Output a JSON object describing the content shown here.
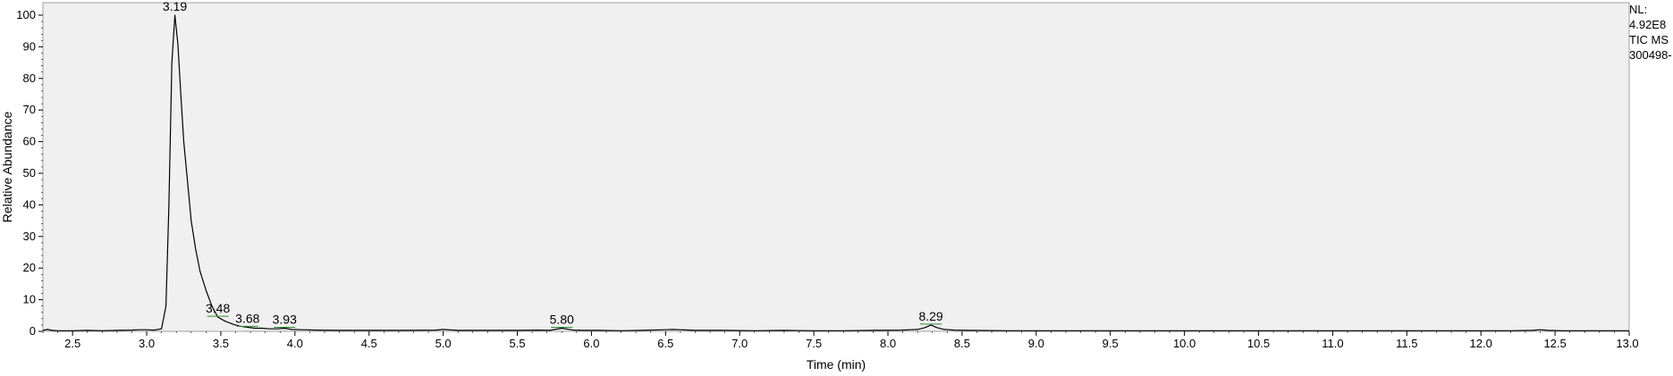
{
  "side_info": {
    "nl_label": "NL:",
    "nl_value": "4.92E8",
    "scan_filter": "TIC  MS",
    "file_name": "300498-"
  },
  "colors": {
    "plot_background": "#f0f0f0",
    "trace": "#000000",
    "annotation_marker": "#2e8b2e"
  },
  "chart_data": {
    "type": "line",
    "title": "",
    "xlabel": "Time (min)",
    "ylabel": "Relative Abundance",
    "xlim": [
      2.3,
      13.0
    ],
    "ylim": [
      0,
      100
    ],
    "x_ticks": [
      2.5,
      3.0,
      3.5,
      4.0,
      4.5,
      5.0,
      5.5,
      6.0,
      6.5,
      7.0,
      7.5,
      8.0,
      8.5,
      9.0,
      9.5,
      10.0,
      10.5,
      11.0,
      11.5,
      12.0,
      12.5,
      13.0
    ],
    "x_tick_labels": [
      "2.5",
      "3.0",
      "3.5",
      "4.0",
      "4.5",
      "5.0",
      "5.5",
      "6.0",
      "6.5",
      "7.0",
      "7.5",
      "8.0",
      "8.5",
      "9.0",
      "9.5",
      "10.0",
      "10.5",
      "11.0",
      "11.5",
      "12.0",
      "12.5",
      "13.0"
    ],
    "y_ticks": [
      0,
      10,
      20,
      30,
      40,
      50,
      60,
      70,
      80,
      90,
      100
    ],
    "y_tick_labels": [
      "0",
      "10",
      "20",
      "30",
      "40",
      "50",
      "60",
      "70",
      "80",
      "90",
      "100"
    ],
    "grid": false,
    "legend": "none",
    "series": [
      {
        "x": [
          2.3,
          2.33,
          2.36,
          2.4,
          2.5,
          2.6,
          2.7,
          2.8,
          2.9,
          2.95,
          3.0,
          3.05,
          3.1,
          3.13,
          3.15,
          3.17,
          3.19,
          3.21,
          3.23,
          3.25,
          3.28,
          3.3,
          3.33,
          3.36,
          3.4,
          3.44,
          3.48,
          3.53,
          3.58,
          3.63,
          3.68,
          3.73,
          3.78,
          3.83,
          3.88,
          3.93,
          3.98,
          4.05,
          4.15,
          4.3,
          4.5,
          4.75,
          4.95,
          5.0,
          5.1,
          5.3,
          5.5,
          5.65,
          5.72,
          5.8,
          5.88,
          5.95,
          6.05,
          6.2,
          6.4,
          6.5,
          6.55,
          6.7,
          6.9,
          7.1,
          7.3,
          7.5,
          7.7,
          7.9,
          8.1,
          8.2,
          8.25,
          8.29,
          8.33,
          8.38,
          8.45,
          8.55,
          8.8,
          9.2,
          9.7,
          10.2,
          10.7,
          11.2,
          11.7,
          12.2,
          12.35,
          12.4,
          12.45,
          12.55,
          12.7,
          12.85,
          13.0
        ],
        "y": [
          0.3,
          0.6,
          0.3,
          0.2,
          0.2,
          0.3,
          0.2,
          0.3,
          0.4,
          0.5,
          0.5,
          0.4,
          0.8,
          8,
          40,
          85,
          100,
          91,
          75,
          60,
          45,
          35,
          26,
          19,
          13,
          8,
          4.5,
          3.2,
          2.3,
          1.6,
          1.3,
          1.0,
          1.0,
          0.8,
          0.8,
          1.0,
          0.6,
          0.5,
          0.4,
          0.3,
          0.3,
          0.3,
          0.4,
          0.6,
          0.3,
          0.3,
          0.3,
          0.4,
          0.3,
          1.0,
          0.4,
          0.3,
          0.3,
          0.2,
          0.4,
          0.5,
          0.6,
          0.3,
          0.3,
          0.2,
          0.3,
          0.2,
          0.2,
          0.3,
          0.4,
          0.6,
          1.2,
          2.0,
          1.2,
          0.6,
          0.4,
          0.3,
          0.2,
          0.2,
          0.2,
          0.2,
          0.2,
          0.2,
          0.2,
          0.2,
          0.3,
          0.5,
          0.3,
          0.2,
          0.2,
          0.2,
          0.2
        ]
      }
    ],
    "annotations": [
      {
        "x": 3.19,
        "y": 100,
        "label": "3.19"
      },
      {
        "x": 3.48,
        "y": 4.5,
        "label": "3.48"
      },
      {
        "x": 3.68,
        "y": 1.3,
        "label": "3.68"
      },
      {
        "x": 3.93,
        "y": 1.0,
        "label": "3.93"
      },
      {
        "x": 5.8,
        "y": 1.0,
        "label": "5.80"
      },
      {
        "x": 8.29,
        "y": 2.0,
        "label": "8.29"
      }
    ]
  }
}
